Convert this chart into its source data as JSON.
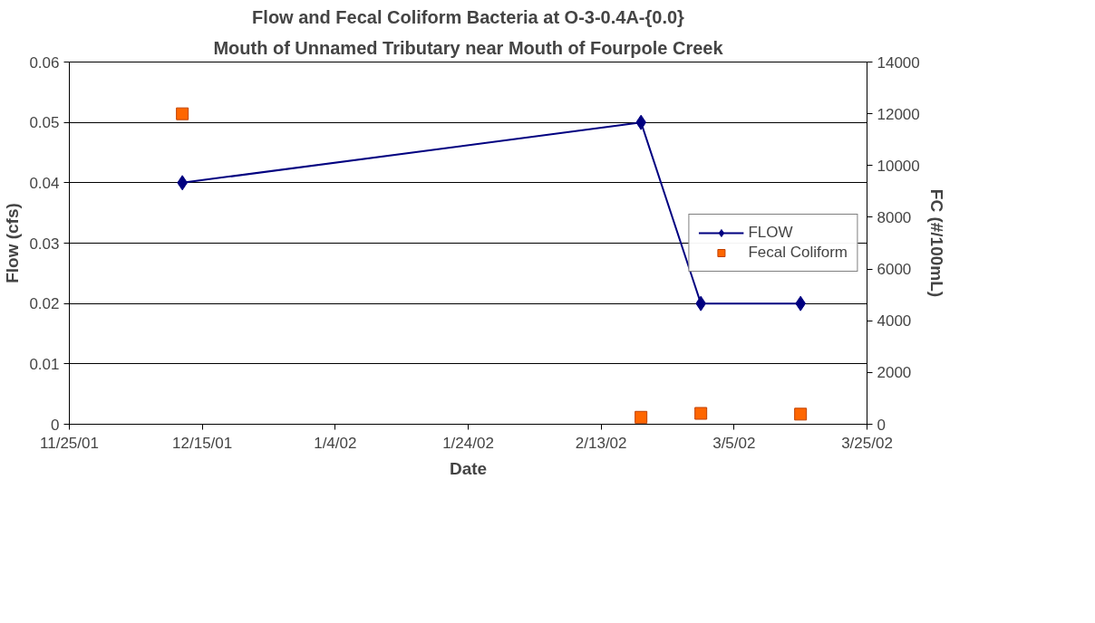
{
  "chart_data": {
    "type": "line",
    "title": "Flow and Fecal Coliform Bacteria at O-3-0.4A-{0.0}",
    "subtitle": "Mouth of Unnamed Tributary near Mouth of Fourpole Creek",
    "xlabel": "Date",
    "ylabel": "Flow (cfs)",
    "y2label": "FC (#/100mL)",
    "xlim": [
      "2001-11-25",
      "2002-03-25"
    ],
    "xticks": [
      {
        "value": "2001-11-25",
        "label": "11/25/01"
      },
      {
        "value": "2001-12-15",
        "label": "12/15/01"
      },
      {
        "value": "2002-01-04",
        "label": "1/4/02"
      },
      {
        "value": "2002-01-24",
        "label": "1/24/02"
      },
      {
        "value": "2002-02-13",
        "label": "2/13/02"
      },
      {
        "value": "2002-03-05",
        "label": "3/5/02"
      },
      {
        "value": "2002-03-25",
        "label": "3/25/02"
      }
    ],
    "ylim": [
      0,
      0.06
    ],
    "yticks": [
      0,
      0.01,
      0.02,
      0.03,
      0.04,
      0.05,
      0.06
    ],
    "y2lim": [
      0,
      14000
    ],
    "y2ticks": [
      0,
      2000,
      4000,
      6000,
      8000,
      10000,
      12000,
      14000
    ],
    "grid": "y",
    "legend": "right",
    "series": [
      {
        "name": "FLOW",
        "type": "line",
        "color": "#000080",
        "marker": "diamond",
        "x": [
          "2001-12-12",
          "2002-02-19",
          "2002-02-28",
          "2002-03-15"
        ],
        "values": [
          0.04,
          0.05,
          0.02,
          0.02
        ]
      },
      {
        "name": "Fecal Coliform",
        "type": "scatter",
        "axis": "y2",
        "color": "#ff6600",
        "marker": "square",
        "x": [
          "2001-12-12",
          "2002-02-19",
          "2002-02-28",
          "2002-03-15"
        ],
        "values": [
          12000,
          270,
          420,
          390
        ]
      }
    ]
  }
}
